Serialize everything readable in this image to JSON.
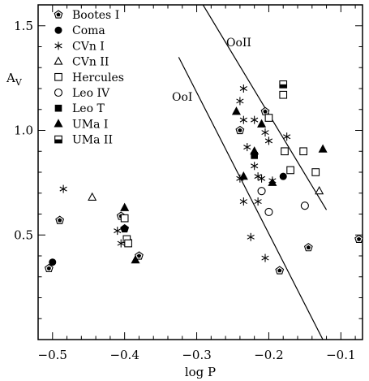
{
  "chart_data": {
    "type": "scatter",
    "xlabel": "log P",
    "ylabel": "A",
    "ylabel_sub": "V",
    "xlim": [
      -0.52,
      -0.07
    ],
    "ylim": [
      0.0,
      1.6
    ],
    "x_ticks": [
      -0.5,
      -0.4,
      -0.3,
      -0.2,
      -0.1
    ],
    "x_tick_labels": [
      "−0.5",
      "−0.4",
      "−0.3",
      "−0.2",
      "−0.1"
    ],
    "y_ticks": [
      0.5,
      1.0,
      1.5
    ],
    "y_tick_labels": [
      "0.5",
      "1.0",
      "1.5"
    ],
    "grid": false,
    "legend_position": "top-left",
    "reference_lines": [
      {
        "name": "OoI",
        "label": "OoI",
        "x": [
          -0.325,
          -0.125
        ],
        "y": [
          1.35,
          0.0
        ]
      },
      {
        "name": "OoII",
        "label": "OoII",
        "x": [
          -0.3,
          -0.12
        ],
        "y": [
          1.65,
          0.62
        ]
      }
    ],
    "series": [
      {
        "name": "Bootes I",
        "label": "Bootes I",
        "marker": "pentagon",
        "points": [
          [
            -0.505,
            0.34
          ],
          [
            -0.49,
            0.57
          ],
          [
            -0.405,
            0.59
          ],
          [
            -0.4,
            0.53
          ],
          [
            -0.38,
            0.4
          ],
          [
            -0.24,
            1.0
          ],
          [
            -0.205,
            1.09
          ],
          [
            -0.185,
            0.33
          ],
          [
            -0.145,
            0.44
          ],
          [
            -0.075,
            0.48
          ]
        ]
      },
      {
        "name": "Coma",
        "label": "Coma",
        "marker": "filled-circle",
        "points": [
          [
            -0.5,
            0.37
          ],
          [
            -0.4,
            0.53
          ],
          [
            -0.18,
            0.78
          ]
        ]
      },
      {
        "name": "CVn I",
        "label": "CVn I",
        "marker": "asterisk",
        "points": [
          [
            -0.485,
            0.72
          ],
          [
            -0.41,
            0.52
          ],
          [
            -0.405,
            0.46
          ],
          [
            -0.395,
            0.47
          ],
          [
            -0.24,
            1.14
          ],
          [
            -0.235,
            1.2
          ],
          [
            -0.24,
            0.77
          ],
          [
            -0.235,
            0.66
          ],
          [
            -0.23,
            0.92
          ],
          [
            -0.22,
            0.83
          ],
          [
            -0.215,
            0.78
          ],
          [
            -0.22,
            1.05
          ],
          [
            -0.21,
            0.77
          ],
          [
            -0.215,
            0.66
          ],
          [
            -0.205,
            0.99
          ],
          [
            -0.2,
            0.95
          ],
          [
            -0.225,
            0.49
          ],
          [
            -0.205,
            0.39
          ],
          [
            -0.195,
            0.76
          ],
          [
            -0.175,
            0.97
          ],
          [
            -0.235,
            1.05
          ]
        ]
      },
      {
        "name": "CVn II",
        "label": "CVn II",
        "marker": "open-triangle",
        "points": [
          [
            -0.445,
            0.68
          ],
          [
            -0.13,
            0.71
          ]
        ]
      },
      {
        "name": "Hercules",
        "label": "Hercules",
        "marker": "open-square",
        "points": [
          [
            -0.4,
            0.58
          ],
          [
            -0.397,
            0.48
          ],
          [
            -0.395,
            0.46
          ],
          [
            -0.2,
            1.06
          ],
          [
            -0.18,
            1.17
          ],
          [
            -0.178,
            0.9
          ],
          [
            -0.17,
            0.81
          ],
          [
            -0.152,
            0.9
          ],
          [
            -0.135,
            0.8
          ]
        ]
      },
      {
        "name": "Leo IV",
        "label": "Leo IV",
        "marker": "open-circle",
        "points": [
          [
            -0.21,
            0.71
          ],
          [
            -0.2,
            0.61
          ],
          [
            -0.15,
            0.64
          ]
        ]
      },
      {
        "name": "Leo T",
        "label": "Leo T",
        "marker": "filled-square",
        "points": [
          [
            -0.22,
            0.88
          ]
        ]
      },
      {
        "name": "UMa I",
        "label": "UMa I",
        "marker": "filled-triangle",
        "points": [
          [
            -0.4,
            0.63
          ],
          [
            -0.385,
            0.38
          ],
          [
            -0.235,
            0.78
          ],
          [
            -0.22,
            0.9
          ],
          [
            -0.21,
            1.03
          ],
          [
            -0.195,
            0.75
          ],
          [
            -0.125,
            0.91
          ],
          [
            -0.245,
            1.09
          ]
        ]
      },
      {
        "name": "UMa II",
        "label": "UMa II",
        "marker": "half-square",
        "points": [
          [
            -0.18,
            1.22
          ]
        ]
      }
    ]
  }
}
